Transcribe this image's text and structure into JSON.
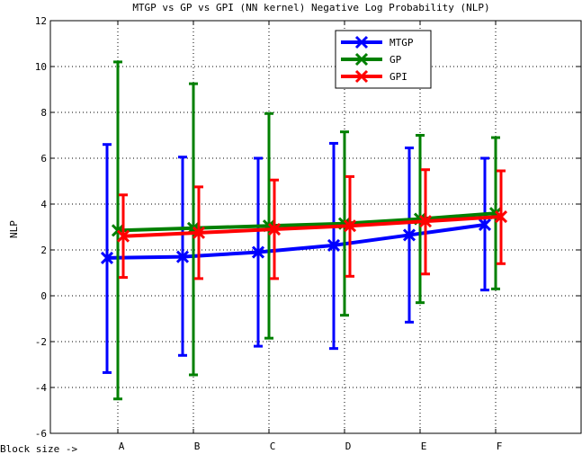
{
  "chart_data": {
    "type": "line",
    "title": "MTGP vs GP vs GPI (NN kernel) Negative Log Probability (NLP)",
    "xlabel": "Block size ->",
    "ylabel": "NLP",
    "categories": [
      "A",
      "B",
      "C",
      "D",
      "E",
      "F"
    ],
    "ylim": [
      -6,
      12
    ],
    "yticks": [
      "-6",
      "-4",
      "-2",
      "0",
      "2",
      "4",
      "6",
      "8",
      "10",
      "12"
    ],
    "grid": true,
    "legend_position": "top-right",
    "series": [
      {
        "name": "MTGP",
        "color": "#0000ff",
        "values": [
          1.65,
          1.7,
          1.9,
          2.2,
          2.65,
          3.1
        ],
        "err_low": [
          -3.35,
          -2.6,
          -2.2,
          -2.3,
          -1.15,
          0.25
        ],
        "err_high": [
          6.6,
          6.05,
          6.0,
          6.65,
          6.45,
          6.0
        ]
      },
      {
        "name": "GP",
        "color": "#008000",
        "values": [
          2.85,
          2.95,
          3.05,
          3.15,
          3.35,
          3.6
        ],
        "err_low": [
          -4.5,
          -3.45,
          -1.85,
          -0.85,
          -0.3,
          0.3
        ],
        "err_high": [
          10.2,
          9.25,
          7.95,
          7.15,
          7.0,
          6.9
        ]
      },
      {
        "name": "GPI",
        "color": "#ff0000",
        "values": [
          2.6,
          2.75,
          2.9,
          3.05,
          3.25,
          3.45
        ],
        "err_low": [
          0.8,
          0.75,
          0.75,
          0.85,
          0.95,
          1.4
        ],
        "err_high": [
          4.4,
          4.75,
          5.05,
          5.2,
          5.5,
          5.45
        ]
      }
    ]
  }
}
